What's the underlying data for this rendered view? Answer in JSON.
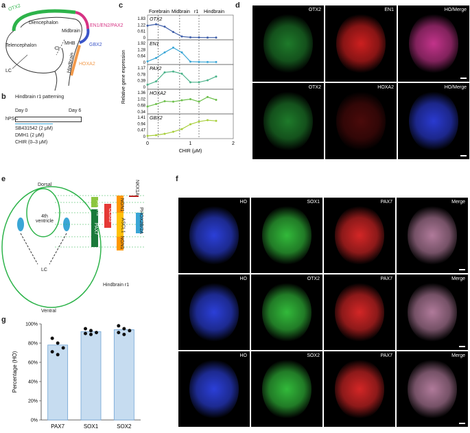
{
  "panel_labels": {
    "a": "a",
    "b": "b",
    "c": "c",
    "d": "d",
    "e": "e",
    "f": "f",
    "g": "g"
  },
  "panel_a": {
    "labels": {
      "otx2": "OTX2",
      "diencephalon": "Diencephalon",
      "midbrain": "Midbrain",
      "en1": "EN1/EN2/PAX2",
      "telencephalon": "Telencephalon",
      "mhb": "MHB",
      "gbx2": "GBX2",
      "hindbrain": "Hindbrain",
      "hoxa2": "HOXA2",
      "lc": "LC"
    },
    "colors": {
      "otx2": "#2db34a",
      "en1": "#d63384",
      "gbx2": "#3b55c8",
      "hoxa2": "#f2994a"
    }
  },
  "panel_b": {
    "title": "Hindbrain r1 patterning",
    "day0": "Day 0",
    "day6": "Day 6",
    "hpsc": "hPSC",
    "sb": "SB431542 (2 μM)",
    "dmh1": "DMH1 (2 μM)",
    "chir": "CHIR (0–3 μM)"
  },
  "panel_c": {
    "regions": {
      "forebrain": "Forebrain",
      "midbrain": "Midbrain",
      "r1": "r1",
      "hindbrain": "Hindbrain"
    },
    "ylabel": "Relative gene expression",
    "xlabel": "CHIR (μM)"
  },
  "panel_d": {
    "row1": [
      "OTX2",
      "EN1",
      "HO/Merge"
    ],
    "row2": [
      "OTX2",
      "HOXA2",
      "HO/Merge"
    ]
  },
  "panel_e": {
    "dorsal": "Dorsal",
    "ventral": "Ventral",
    "ventricle": "4th ventricle",
    "lc": "LC",
    "hindbrain": "Hindbrain r1",
    "bars": {
      "atoh1": "ATOH1",
      "olig3": "OLIG3",
      "ngn1": "NGN1",
      "pax7": "PAX7",
      "ascl1": "ASCL1",
      "ngn1b": "NGN1",
      "phox": "PHOX2B/2A",
      "nkx1": "NKX1A"
    }
  },
  "panel_f": {
    "row1": [
      "HO",
      "SOX1",
      "PAX7",
      "Merge"
    ],
    "row2": [
      "HO",
      "OTX2",
      "PAX7",
      "Merge"
    ],
    "row3": [
      "HO",
      "SOX2",
      "PAX7",
      "Merge"
    ]
  },
  "chart_data": [
    {
      "type": "line",
      "title": "",
      "xlabel": "CHIR (μM)",
      "ylabel": "Relative gene expression",
      "x": [
        0,
        0.2,
        0.4,
        0.6,
        0.8,
        1.0,
        1.2,
        1.4,
        1.6
      ],
      "xlim": [
        0,
        2
      ],
      "xticks": [
        "0",
        "1",
        "2"
      ],
      "series": [
        {
          "name": "OTX2",
          "color": "#3d5da8",
          "yticks": [
            "0",
            "0.61",
            "1.22",
            "1.83"
          ],
          "ylim": [
            0,
            1.83
          ],
          "values": [
            1.15,
            1.28,
            1.05,
            0.55,
            0.12,
            0.04,
            0.03,
            0.02,
            0.02
          ]
        },
        {
          "name": "EN1",
          "color": "#3aa6d6",
          "yticks": [
            "0",
            "0.64",
            "1.28",
            "1.92"
          ],
          "ylim": [
            0,
            1.92
          ],
          "values": [
            0.1,
            0.45,
            1.0,
            1.48,
            1.0,
            0.08,
            0.05,
            0.04,
            0.04
          ]
        },
        {
          "name": "PAX2",
          "color": "#4bb38a",
          "yticks": [
            "0",
            "0.39",
            "0.78",
            "1.17"
          ],
          "ylim": [
            0,
            1.17
          ],
          "values": [
            0.15,
            0.35,
            0.9,
            0.95,
            0.82,
            0.3,
            0.3,
            0.42,
            0.65
          ]
        },
        {
          "name": "HOXA2",
          "color": "#6cbf4a",
          "yticks": [
            "0.34",
            "0.68",
            "1.02",
            "1.36"
          ],
          "ylim": [
            0,
            1.36
          ],
          "values": [
            0.38,
            0.55,
            0.75,
            0.72,
            0.82,
            0.9,
            0.72,
            1.05,
            0.85
          ]
        },
        {
          "name": "GBX2",
          "color": "#a8cf3b",
          "yticks": [
            "0",
            "0.47",
            "0.94",
            "1.41"
          ],
          "ylim": [
            0,
            1.41
          ],
          "values": [
            0.05,
            0.1,
            0.2,
            0.35,
            0.55,
            0.9,
            1.1,
            1.2,
            1.15
          ]
        }
      ]
    },
    {
      "type": "bar",
      "title": "",
      "ylabel": "Percentage (HO)",
      "xlabel": "",
      "categories": [
        "PAX7",
        "SOX1",
        "SOX2"
      ],
      "values": [
        78,
        92,
        94
      ],
      "yticks": [
        "0%",
        "20%",
        "40%",
        "60%",
        "80%",
        "100%"
      ],
      "ylim": [
        0,
        100
      ],
      "points": [
        [
          85,
          80,
          75,
          71,
          68
        ],
        [
          95,
          93,
          91,
          90,
          89
        ],
        [
          98,
          95,
          93,
          91,
          89
        ]
      ]
    }
  ]
}
